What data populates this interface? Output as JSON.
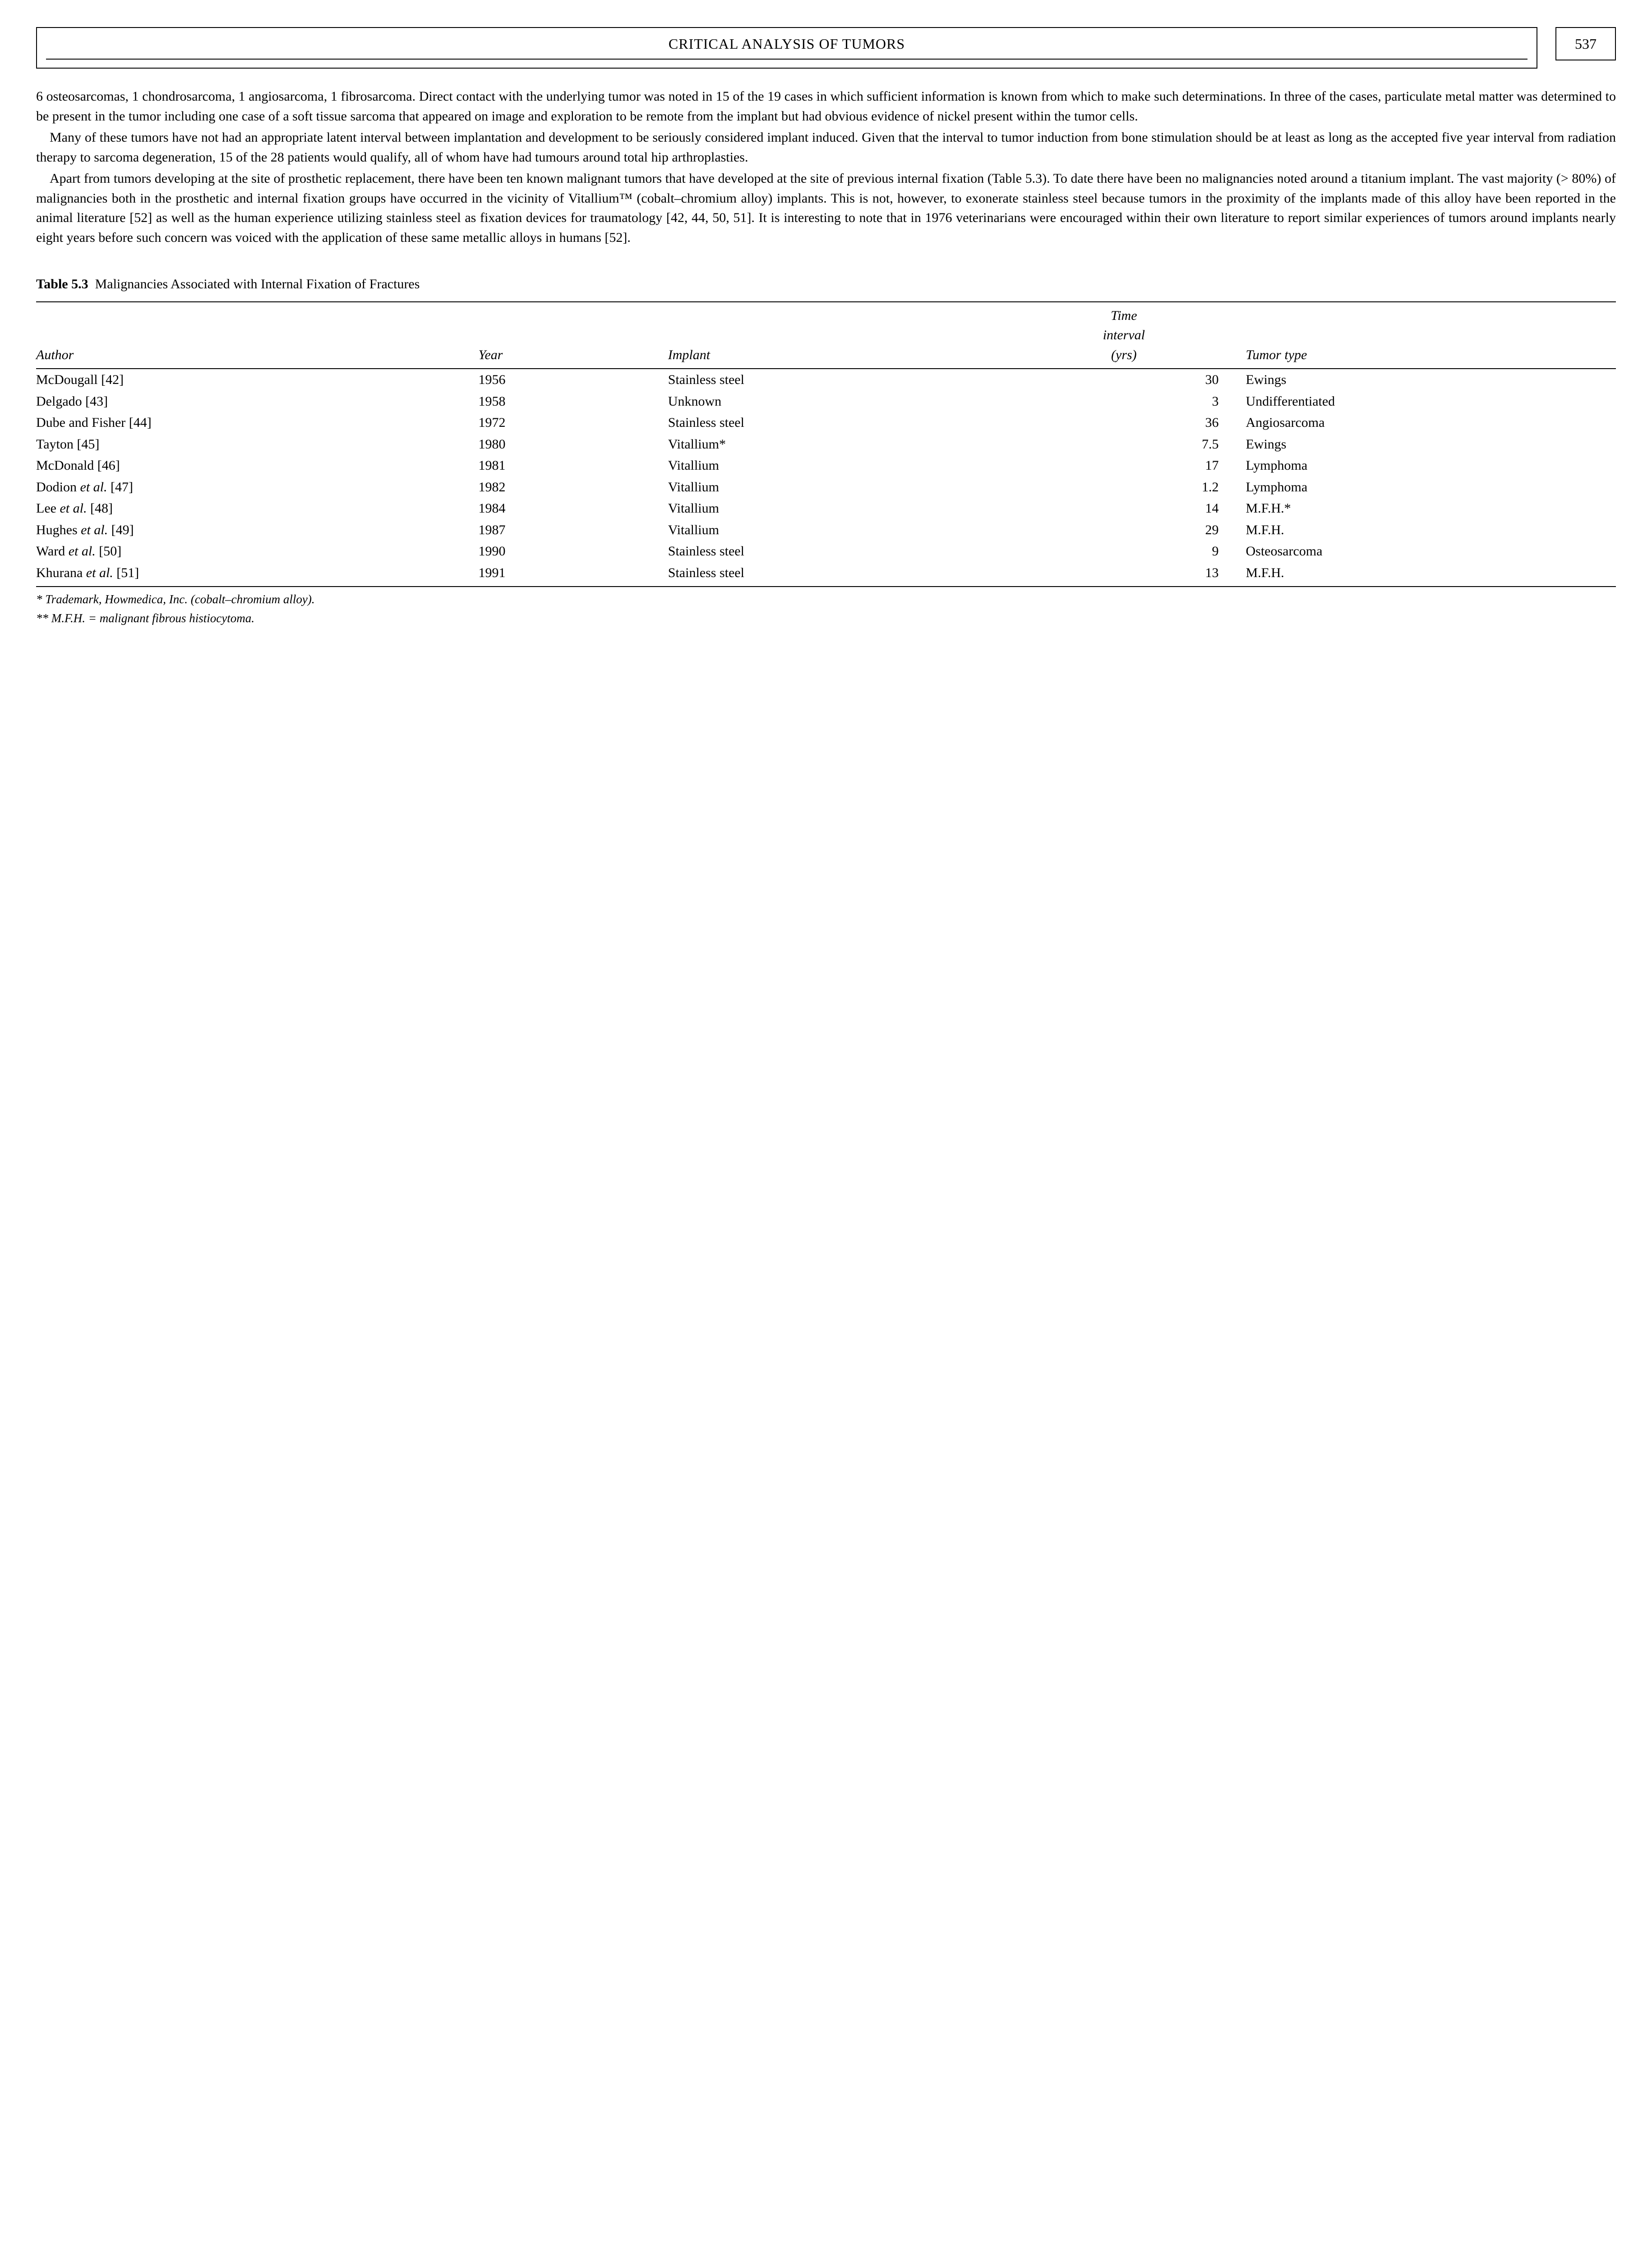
{
  "header": {
    "title": "CRITICAL ANALYSIS OF TUMORS",
    "page_number": "537"
  },
  "paragraphs": {
    "p1": "6 osteosarcomas, 1 chondrosarcoma, 1 angiosarcoma, 1 fibrosarcoma. Direct contact with the underlying tumor was noted in 15 of the 19 cases in which sufficient information is known from which to make such determinations. In three of the cases, particulate metal matter was determined to be present in the tumor including one case of a soft tissue sarcoma that appeared on image and exploration to be remote from the implant but had obvious evidence of nickel present within the tumor cells.",
    "p2": "Many of these tumors have not had an appropriate latent interval between implantation and development to be seriously considered implant induced. Given that the interval to tumor induction from bone stimulation should be at least as long as the accepted five year interval from radiation therapy to sarcoma degeneration, 15 of the 28 patients would qualify, all of whom have had tumours around total hip arthroplasties.",
    "p3": "Apart from tumors developing at the site of prosthetic replacement, there have been ten known malignant tumors that have developed at the site of previous internal fixation (Table 5.3). To date there have been no malignancies noted around a titanium implant. The vast majority (> 80%) of malignancies both in the prosthetic and internal fixation groups have occurred in the vicinity of Vitallium™ (cobalt–chromium alloy) implants. This is not, however, to exonerate stainless steel because tumors in the proximity of the implants made of this alloy have been reported in the animal literature [52] as well as the human experience utilizing stainless steel as fixation devices for traumatology [42, 44, 50, 51]. It is interesting to note that in 1976 veterinarians were encouraged within their own literature to report similar experiences of tumors around implants nearly eight years before such concern was voiced with the application of these same metallic alloys in humans [52]."
  },
  "table": {
    "label": "Table 5.3",
    "caption": "Malignancies Associated with Internal Fixation of Fractures",
    "columns": {
      "c1": "Author",
      "c2": "Year",
      "c3": "Implant",
      "c4a": "Time",
      "c4b": "interval",
      "c4c": "(yrs)",
      "c5": "Tumor type"
    },
    "rows": [
      {
        "author_pre": "McDougall [42]",
        "author_em": "",
        "author_post": "",
        "year": "1956",
        "implant": "Stainless steel",
        "interval": "30",
        "tumor": "Ewings"
      },
      {
        "author_pre": "Delgado [43]",
        "author_em": "",
        "author_post": "",
        "year": "1958",
        "implant": "Unknown",
        "interval": "3",
        "tumor": "Undifferentiated"
      },
      {
        "author_pre": "Dube and Fisher [44]",
        "author_em": "",
        "author_post": "",
        "year": "1972",
        "implant": "Stainless steel",
        "interval": "36",
        "tumor": "Angiosarcoma"
      },
      {
        "author_pre": "Tayton [45]",
        "author_em": "",
        "author_post": "",
        "year": "1980",
        "implant": "Vitallium*",
        "interval": "7.5",
        "tumor": "Ewings"
      },
      {
        "author_pre": "McDonald [46]",
        "author_em": "",
        "author_post": "",
        "year": "1981",
        "implant": "Vitallium",
        "interval": "17",
        "tumor": "Lymphoma"
      },
      {
        "author_pre": "Dodion ",
        "author_em": "et al.",
        "author_post": " [47]",
        "year": "1982",
        "implant": "Vitallium",
        "interval": "1.2",
        "tumor": "Lymphoma"
      },
      {
        "author_pre": "Lee ",
        "author_em": "et al.",
        "author_post": " [48]",
        "year": "1984",
        "implant": "Vitallium",
        "interval": "14",
        "tumor": "M.F.H.*"
      },
      {
        "author_pre": "Hughes ",
        "author_em": "et al.",
        "author_post": " [49]",
        "year": "1987",
        "implant": "Vitallium",
        "interval": "29",
        "tumor": "M.F.H."
      },
      {
        "author_pre": "Ward ",
        "author_em": "et al.",
        "author_post": " [50]",
        "year": "1990",
        "implant": "Stainless steel",
        "interval": "9",
        "tumor": "Osteosarcoma"
      },
      {
        "author_pre": "Khurana ",
        "author_em": "et al.",
        "author_post": " [51]",
        "year": "1991",
        "implant": "Stainless steel",
        "interval": "13",
        "tumor": "M.F.H."
      }
    ],
    "footnotes": {
      "f1": "* Trademark, Howmedica, Inc. (cobalt–chromium alloy).",
      "f2": "** M.F.H. = malignant fibrous histiocytoma."
    }
  }
}
